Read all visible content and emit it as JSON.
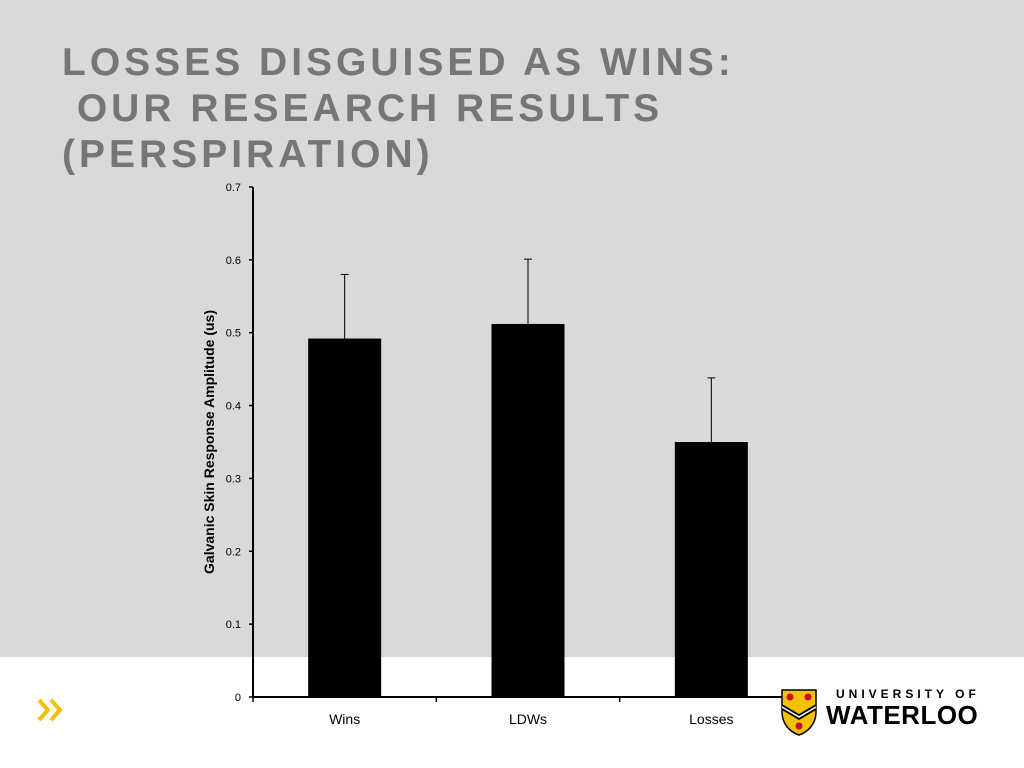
{
  "slide": {
    "title_lines": [
      "LOSSES DISGUISED AS WINS:",
      " OUR RESEARCH RESULTS",
      "(PERSPIRATION)"
    ],
    "nav_icon": "double-chevron-right-icon",
    "colors": {
      "top_band": "#d9d9d9",
      "title": "#767676",
      "accent": "#f2c100"
    }
  },
  "logo": {
    "line1": "UNIVERSITY OF",
    "line2": "WATERLOO",
    "icon": "university-crest-icon"
  },
  "chart_data": {
    "type": "bar",
    "categories": [
      "Wins",
      "LDWs",
      "Losses"
    ],
    "values": [
      0.492,
      0.512,
      0.35
    ],
    "error_upper": [
      0.58,
      0.601,
      0.438
    ],
    "ylabel": "Galvanic Skin Response Amplitude (us)",
    "xlabel": "",
    "ylim": [
      0,
      0.7
    ],
    "yticks": [
      "0",
      "0.1",
      "0.2",
      "0.3",
      "0.4",
      "0.5",
      "0.6",
      "0.7"
    ],
    "grid": false,
    "bar_color": "#000000"
  }
}
